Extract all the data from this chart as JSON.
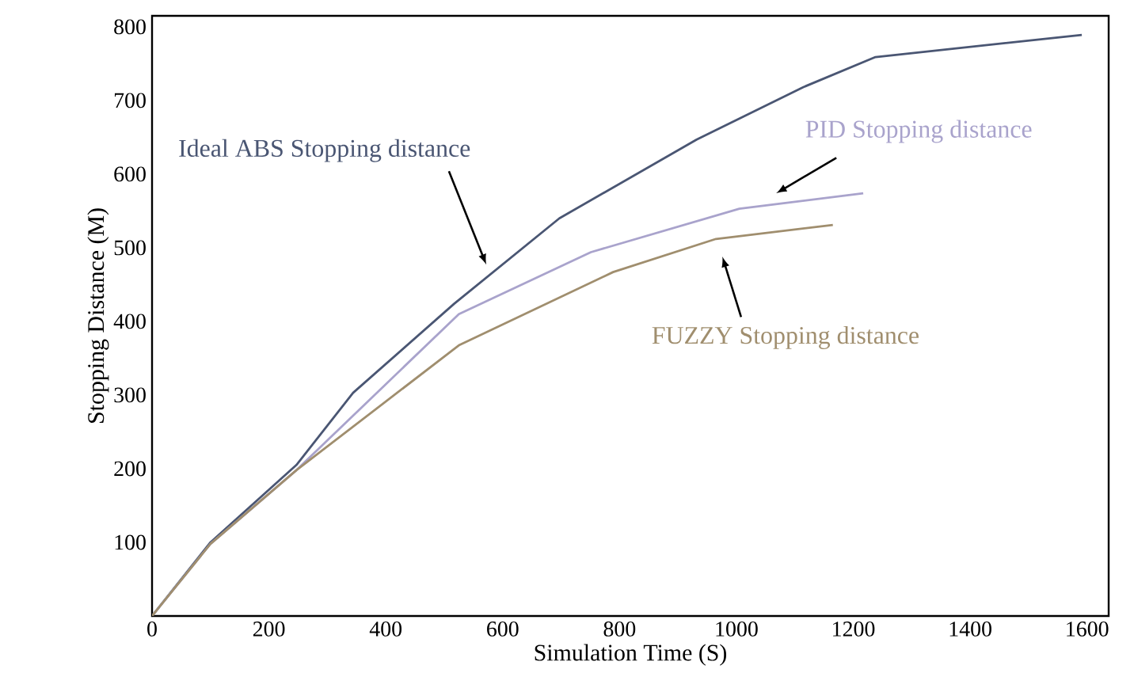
{
  "chart_data": {
    "type": "line",
    "xlabel": "Simulation Time (S)",
    "ylabel": "Stopping Distance (M)",
    "xlim": [
      0,
      1637
    ],
    "ylim": [
      0,
      815
    ],
    "xticks": [
      0,
      200,
      400,
      600,
      800,
      1000,
      1200,
      1400,
      1600
    ],
    "yticks": [
      100,
      200,
      300,
      400,
      500,
      600,
      700,
      800
    ],
    "grid": false,
    "legend": false,
    "marker": "none",
    "line_style": "solid",
    "series": [
      {
        "name": "Ideal ABS Stopping distance",
        "color": "#4a5673",
        "x": [
          0,
          100,
          247,
          344,
          517,
          697,
          932,
          1114,
          1238,
          1591
        ],
        "values": [
          0,
          100,
          205,
          303,
          424,
          540,
          647,
          718,
          759,
          789
        ]
      },
      {
        "name": "PID Stopping distance",
        "color": "#a9a3cc",
        "x": [
          0,
          100,
          247,
          525,
          751,
          1005,
          1217
        ],
        "values": [
          0,
          98,
          198,
          410,
          494,
          553,
          574
        ]
      },
      {
        "name": "FUZZY Stopping distance",
        "color": "#a08e6e",
        "x": [
          0,
          100,
          247,
          526,
          789,
          965,
          1165
        ],
        "values": [
          0,
          98,
          198,
          368,
          467,
          512,
          531
        ]
      }
    ]
  }
}
